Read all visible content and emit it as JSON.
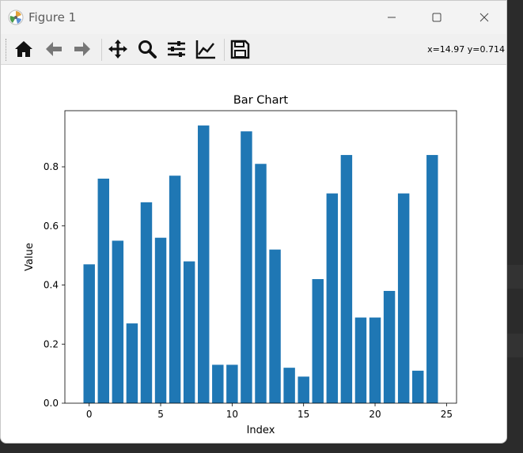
{
  "window": {
    "title": "Figure 1",
    "coords_readout": "x=14.97 y=0.714"
  },
  "toolbar": {
    "buttons": [
      {
        "name": "home-icon",
        "tooltip": "Home"
      },
      {
        "name": "back-arrow-icon",
        "tooltip": "Back"
      },
      {
        "name": "forward-arrow-icon",
        "tooltip": "Forward"
      },
      {
        "name": "pan-move-icon",
        "tooltip": "Pan"
      },
      {
        "name": "zoom-magnifier-icon",
        "tooltip": "Zoom"
      },
      {
        "name": "subplots-sliders-icon",
        "tooltip": "Subplots"
      },
      {
        "name": "edit-axes-icon",
        "tooltip": "Customize"
      },
      {
        "name": "save-floppy-icon",
        "tooltip": "Save"
      }
    ]
  },
  "colors": {
    "bar": "#1f77b4",
    "axes": "#000000"
  },
  "chart_data": {
    "type": "bar",
    "title": "Bar Chart",
    "xlabel": "Index",
    "ylabel": "Value",
    "x": [
      0,
      1,
      2,
      3,
      4,
      5,
      6,
      7,
      8,
      9,
      10,
      11,
      12,
      13,
      14,
      15,
      16,
      17,
      18,
      19,
      20,
      21,
      22,
      23,
      24
    ],
    "values": [
      0.47,
      0.76,
      0.55,
      0.27,
      0.68,
      0.56,
      0.77,
      0.48,
      0.94,
      0.13,
      0.13,
      0.92,
      0.81,
      0.52,
      0.12,
      0.09,
      0.42,
      0.71,
      0.84,
      0.29,
      0.29,
      0.38,
      0.71,
      0.11,
      0.84
    ],
    "xlim": [
      -1.7,
      25.7
    ],
    "ylim": [
      0,
      0.99
    ],
    "xticks": [
      0,
      5,
      10,
      15,
      20,
      25
    ],
    "yticks": [
      0.0,
      0.2,
      0.4,
      0.6,
      0.8
    ],
    "xtick_labels": [
      "0",
      "5",
      "10",
      "15",
      "20",
      "25"
    ],
    "ytick_labels": [
      "0.0",
      "0.2",
      "0.4",
      "0.6",
      "0.8"
    ],
    "grid": false,
    "legend": "none"
  }
}
